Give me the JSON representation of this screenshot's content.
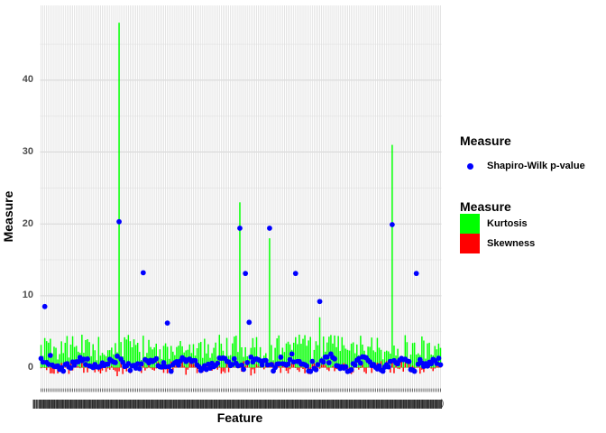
{
  "figure": {
    "y_axis_title": "Measure",
    "x_axis_title": "Feature",
    "x_axis_labels_crushed": true,
    "x_axis_trailing_glyph": ")"
  },
  "legend_points": {
    "title": "Measure",
    "items": [
      {
        "label": "Shapiro-Wilk p-value",
        "color": "#0000ff",
        "shape": "circle"
      }
    ]
  },
  "legend_fills": {
    "title": "Measure",
    "items": [
      {
        "label": "Kurtosis",
        "color": "#00ff00"
      },
      {
        "label": "Skewness",
        "color": "#ff0000"
      }
    ]
  },
  "colors": {
    "kurtosis": "#00ff00",
    "skewness": "#ff0000",
    "shapiro": "#0000ff",
    "grid_vertical": "#dedede",
    "grid_major": "#d2d2d2",
    "grid_minor": "#ededed",
    "axis_text": "#4d4d4d",
    "tick_marks": "#4a4a4a",
    "label_strip": "#424242"
  },
  "chart_data": {
    "type": "bar",
    "title": "",
    "xlabel": "Feature",
    "ylabel": "Measure",
    "ylim": [
      -2.5,
      50.5
    ],
    "yticks": [
      0,
      10,
      20,
      30,
      40
    ],
    "yticks_minor": [
      5,
      15,
      25,
      35,
      45
    ],
    "n_features": 216,
    "grid": "vertical-line-per-feature",
    "legend_position": "right",
    "noise_seed": 42,
    "series": [
      {
        "name": "Kurtosis",
        "kind": "bar",
        "color": "#00ff00",
        "baseline_range": [
          1.0,
          4.6
        ],
        "outliers": [
          [
            42,
            48
          ],
          [
            107,
            23
          ],
          [
            123,
            18
          ],
          [
            150,
            7
          ],
          [
            189,
            31
          ]
        ]
      },
      {
        "name": "Skewness",
        "kind": "bar",
        "color": "#ff0000",
        "baseline_range": [
          -0.9,
          0.9
        ],
        "outliers": [
          [
            41,
            -1.2
          ],
          [
            44,
            -0.9
          ],
          [
            68,
            -0.8
          ],
          [
            78,
            -1.0
          ],
          [
            113,
            -1.1
          ],
          [
            142,
            -0.8
          ],
          [
            167,
            -0.9
          ],
          [
            201,
            -0.7
          ]
        ]
      },
      {
        "name": "Shapiro-Wilk p-value",
        "kind": "point",
        "color": "#0000ff",
        "baseline_range": [
          -0.85,
          1.9
        ],
        "outliers": [
          [
            2,
            8.5
          ],
          [
            42,
            20.3
          ],
          [
            55,
            13.2
          ],
          [
            68,
            6.2
          ],
          [
            107,
            19.4
          ],
          [
            110,
            13.1
          ],
          [
            112,
            6.3
          ],
          [
            123,
            19.4
          ],
          [
            137,
            13.1
          ],
          [
            150,
            9.2
          ],
          [
            189,
            19.9
          ],
          [
            202,
            13.1
          ]
        ]
      }
    ]
  }
}
